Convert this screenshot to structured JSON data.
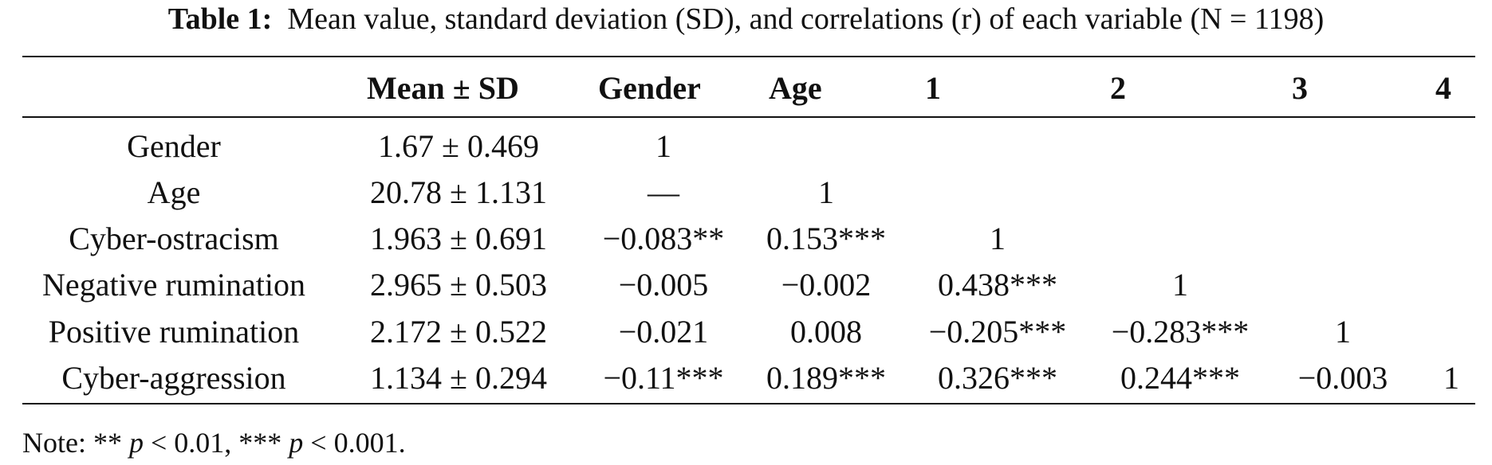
{
  "caption": {
    "label": "Table 1:",
    "text": "Mean value, standard deviation (SD), and correlations (r) of each variable (N = 1198)"
  },
  "table": {
    "headers": [
      "",
      "Mean ± SD",
      "Gender",
      "Age",
      "1",
      "2",
      "3",
      "4"
    ],
    "rows": [
      [
        "Gender",
        "1.67 ± 0.469",
        "1",
        "",
        "",
        "",
        "",
        ""
      ],
      [
        "Age",
        "20.78 ± 1.131",
        "—",
        "1",
        "",
        "",
        "",
        ""
      ],
      [
        "Cyber-ostracism",
        "1.963 ± 0.691",
        "−0.083**",
        "0.153***",
        "1",
        "",
        "",
        ""
      ],
      [
        "Negative rumination",
        "2.965 ± 0.503",
        "−0.005",
        "−0.002",
        "0.438***",
        "1",
        "",
        ""
      ],
      [
        "Positive rumination",
        "2.172 ± 0.522",
        "−0.021",
        "0.008",
        "−0.205***",
        "−0.283***",
        "1",
        ""
      ],
      [
        "Cyber-aggression",
        "1.134 ± 0.294",
        "−0.11***",
        "0.189***",
        "0.326***",
        "0.244***",
        "−0.003",
        "1"
      ]
    ]
  },
  "note": {
    "prefix": "Note: ",
    "mark1": "**",
    "p1": "p",
    "thresh1": " < 0.01, ",
    "mark2": "***",
    "p2": "p",
    "thresh2": " < 0.001."
  }
}
